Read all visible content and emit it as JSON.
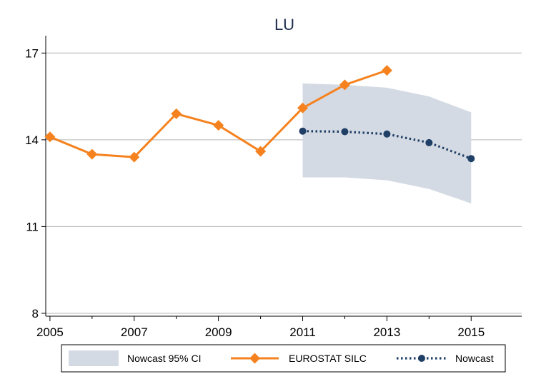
{
  "chart_data": {
    "type": "line",
    "title": "LU",
    "xlabel": "",
    "ylabel": "",
    "xlim": [
      2004.9,
      2016.2
    ],
    "ylim": [
      7.9,
      17.6
    ],
    "xticks": [
      2005,
      2007,
      2009,
      2011,
      2013,
      2015
    ],
    "yticks": [
      8,
      11,
      14,
      17
    ],
    "grid": true,
    "legend_position": "bottom",
    "colors": {
      "silc": "#f5821f",
      "nowcast": "#1f3f66",
      "ci": "#d4dae3",
      "axis": "#000000",
      "grid": "#b4b4b4"
    },
    "ci_band": {
      "name": "Nowcast 95% CI",
      "x": [
        2011,
        2012,
        2013,
        2014,
        2015
      ],
      "lower": [
        12.7,
        12.7,
        12.6,
        12.3,
        11.8
      ],
      "upper": [
        15.95,
        15.9,
        15.8,
        15.5,
        14.95
      ]
    },
    "series": [
      {
        "name": "EUROSTAT SILC",
        "style": "solid",
        "marker": "diamond",
        "x": [
          2005,
          2006,
          2007,
          2008,
          2009,
          2010,
          2011,
          2012,
          2013
        ],
        "values": [
          14.1,
          13.5,
          13.4,
          14.9,
          14.5,
          13.6,
          15.1,
          15.9,
          16.4
        ]
      },
      {
        "name": "Nowcast",
        "style": "dotted",
        "marker": "circle",
        "x": [
          2011,
          2012,
          2013,
          2014,
          2015
        ],
        "values": [
          14.3,
          14.28,
          14.2,
          13.9,
          13.35
        ]
      }
    ],
    "legend": [
      {
        "label": "Nowcast 95% CI",
        "kind": "band"
      },
      {
        "label": "EUROSTAT SILC",
        "kind": "silc"
      },
      {
        "label": "Nowcast",
        "kind": "nowcast"
      }
    ]
  }
}
